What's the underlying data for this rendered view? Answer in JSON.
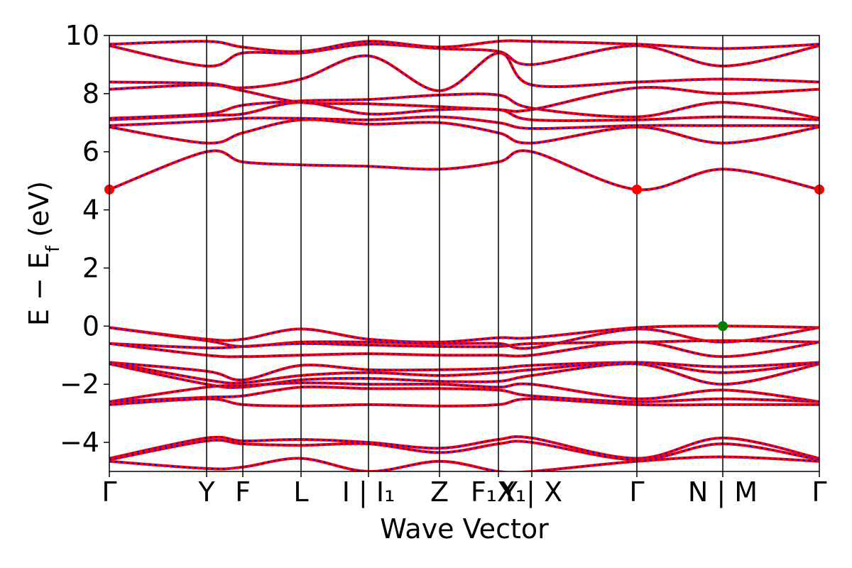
{
  "chart_data": {
    "type": "line",
    "xlabel": "Wave Vector",
    "ylabel": "E − E",
    "ylabel_sub": "f",
    "ylabel_unit": " (eV)",
    "ylim": [
      -5,
      10
    ],
    "yticks": [
      -4,
      -2,
      0,
      2,
      4,
      6,
      8,
      10
    ],
    "ytick_labels": [
      "−4",
      "−2",
      "0",
      "2",
      "4",
      "6",
      "8",
      "10"
    ],
    "grid": false,
    "legend": "none",
    "xlim": [
      0,
      1
    ],
    "kpoint_positions": [
      0,
      0.137,
      0.188,
      0.27,
      0.365,
      0.465,
      0.548,
      0.595,
      0.743,
      0.864,
      1
    ],
    "kpoint_labels": [
      {
        "pos": 0,
        "label": "Γ"
      },
      {
        "pos": 0.137,
        "label": "Y"
      },
      {
        "pos": 0.188,
        "label": "F"
      },
      {
        "pos": 0.27,
        "label": "L"
      },
      {
        "pos": 0.365,
        "label": "I | I₁"
      },
      {
        "pos": 0.465,
        "label": "Z"
      },
      {
        "pos": 0.548,
        "label": "F₁X₁"
      },
      {
        "pos": 0.595,
        "label": "Y | X"
      },
      {
        "pos": 0.743,
        "label": "Γ"
      },
      {
        "pos": 0.864,
        "label": "N | M"
      },
      {
        "pos": 1,
        "label": "Γ"
      }
    ],
    "series_styles": {
      "spin_up": "#ff0000",
      "spin_down": "#0000ff"
    },
    "cbm_marker": {
      "color": "#ff0000",
      "points": [
        [
          0,
          4.7
        ],
        [
          0.743,
          4.7
        ],
        [
          1,
          4.7
        ]
      ]
    },
    "vbm_marker": {
      "color": "#008000",
      "points": [
        [
          0.864,
          0.0
        ]
      ]
    },
    "bands": [
      [
        [
          0,
          -0.05
        ],
        [
          0.137,
          -0.45
        ],
        [
          0.188,
          -0.45
        ],
        [
          0.27,
          -0.1
        ],
        [
          0.365,
          -0.45
        ],
        [
          0.465,
          -0.55
        ],
        [
          0.548,
          -0.4
        ],
        [
          0.595,
          -0.4
        ],
        [
          0.743,
          -0.05
        ],
        [
          0.864,
          0.0
        ],
        [
          1,
          -0.05
        ]
      ],
      [
        [
          0,
          -0.05
        ],
        [
          0.137,
          -0.5
        ],
        [
          0.188,
          -0.7
        ],
        [
          0.27,
          -0.55
        ],
        [
          0.365,
          -0.55
        ],
        [
          0.465,
          -0.6
        ],
        [
          0.548,
          -0.6
        ],
        [
          0.595,
          -0.75
        ],
        [
          0.743,
          -0.1
        ],
        [
          0.864,
          -0.55
        ],
        [
          1,
          -0.05
        ]
      ],
      [
        [
          0,
          -0.6
        ],
        [
          0.137,
          -0.75
        ],
        [
          0.188,
          -0.7
        ],
        [
          0.27,
          -0.6
        ],
        [
          0.365,
          -0.65
        ],
        [
          0.465,
          -0.7
        ],
        [
          0.548,
          -0.7
        ],
        [
          0.595,
          -0.6
        ],
        [
          0.743,
          -0.55
        ],
        [
          0.864,
          -0.5
        ],
        [
          1,
          -0.55
        ]
      ],
      [
        [
          0,
          -0.6
        ],
        [
          0.137,
          -1.0
        ],
        [
          0.188,
          -1.05
        ],
        [
          0.27,
          -1.0
        ],
        [
          0.365,
          -0.95
        ],
        [
          0.465,
          -1.0
        ],
        [
          0.548,
          -1.0
        ],
        [
          0.595,
          -1.0
        ],
        [
          0.743,
          -0.55
        ],
        [
          0.864,
          -1.05
        ],
        [
          1,
          -0.55
        ]
      ],
      [
        [
          0,
          -1.25
        ],
        [
          0.137,
          -1.55
        ],
        [
          0.188,
          -1.85
        ],
        [
          0.27,
          -1.35
        ],
        [
          0.365,
          -1.5
        ],
        [
          0.465,
          -1.5
        ],
        [
          0.548,
          -1.45
        ],
        [
          0.595,
          -1.35
        ],
        [
          0.743,
          -1.25
        ],
        [
          0.864,
          -1.4
        ],
        [
          1,
          -1.25
        ]
      ],
      [
        [
          0,
          -1.25
        ],
        [
          0.137,
          -1.85
        ],
        [
          0.188,
          -1.95
        ],
        [
          0.27,
          -1.7
        ],
        [
          0.365,
          -1.6
        ],
        [
          0.465,
          -1.7
        ],
        [
          0.548,
          -1.6
        ],
        [
          0.595,
          -1.5
        ],
        [
          0.743,
          -1.25
        ],
        [
          0.864,
          -1.6
        ],
        [
          1,
          -1.25
        ]
      ],
      [
        [
          0,
          -1.3
        ],
        [
          0.137,
          -2.0
        ],
        [
          0.188,
          -2.1
        ],
        [
          0.27,
          -1.85
        ],
        [
          0.365,
          -1.8
        ],
        [
          0.465,
          -1.9
        ],
        [
          0.548,
          -1.9
        ],
        [
          0.595,
          -1.7
        ],
        [
          0.743,
          -1.3
        ],
        [
          0.864,
          -2.0
        ],
        [
          1,
          -1.3
        ]
      ],
      [
        [
          0,
          -2.6
        ],
        [
          0.137,
          -2.1
        ],
        [
          0.188,
          -2.05
        ],
        [
          0.27,
          -1.95
        ],
        [
          0.365,
          -2.0
        ],
        [
          0.465,
          -2.0
        ],
        [
          0.548,
          -2.1
        ],
        [
          0.595,
          -2.0
        ],
        [
          0.743,
          -2.5
        ],
        [
          0.864,
          -2.2
        ],
        [
          1,
          -2.6
        ]
      ],
      [
        [
          0,
          -2.6
        ],
        [
          0.137,
          -2.45
        ],
        [
          0.188,
          -2.4
        ],
        [
          0.27,
          -2.1
        ],
        [
          0.365,
          -2.15
        ],
        [
          0.465,
          -2.15
        ],
        [
          0.548,
          -2.2
        ],
        [
          0.595,
          -2.4
        ],
        [
          0.743,
          -2.6
        ],
        [
          0.864,
          -2.5
        ],
        [
          1,
          -2.6
        ]
      ],
      [
        [
          0,
          -2.7
        ],
        [
          0.137,
          -2.5
        ],
        [
          0.188,
          -2.7
        ],
        [
          0.27,
          -2.75
        ],
        [
          0.365,
          -2.7
        ],
        [
          0.465,
          -2.75
        ],
        [
          0.548,
          -2.7
        ],
        [
          0.595,
          -2.5
        ],
        [
          0.743,
          -2.7
        ],
        [
          0.864,
          -2.7
        ],
        [
          1,
          -2.7
        ]
      ],
      [
        [
          0,
          -4.55
        ],
        [
          0.137,
          -3.85
        ],
        [
          0.188,
          -3.95
        ],
        [
          0.27,
          -3.9
        ],
        [
          0.365,
          -4.0
        ],
        [
          0.465,
          -4.2
        ],
        [
          0.548,
          -3.9
        ],
        [
          0.595,
          -3.85
        ],
        [
          0.743,
          -4.55
        ],
        [
          0.864,
          -3.85
        ],
        [
          1,
          -4.55
        ]
      ],
      [
        [
          0,
          -4.6
        ],
        [
          0.137,
          -3.95
        ],
        [
          0.188,
          -4.05
        ],
        [
          0.27,
          -4.1
        ],
        [
          0.365,
          -4.05
        ],
        [
          0.465,
          -4.35
        ],
        [
          0.548,
          -4.05
        ],
        [
          0.595,
          -4.0
        ],
        [
          0.743,
          -4.6
        ],
        [
          0.864,
          -4.05
        ],
        [
          1,
          -4.6
        ]
      ],
      [
        [
          0,
          -4.65
        ],
        [
          0.137,
          -4.9
        ],
        [
          0.188,
          -4.85
        ],
        [
          0.27,
          -4.55
        ],
        [
          0.365,
          -5.0
        ],
        [
          0.465,
          -4.65
        ],
        [
          0.548,
          -5.0
        ],
        [
          0.595,
          -5.0
        ],
        [
          0.743,
          -4.65
        ],
        [
          0.864,
          -4.5
        ],
        [
          1,
          -4.65
        ]
      ],
      [
        [
          0,
          4.7
        ],
        [
          0.137,
          6.0
        ],
        [
          0.188,
          5.65
        ],
        [
          0.27,
          5.55
        ],
        [
          0.365,
          5.5
        ],
        [
          0.465,
          5.4
        ],
        [
          0.548,
          5.65
        ],
        [
          0.595,
          6.0
        ],
        [
          0.743,
          4.7
        ],
        [
          0.864,
          5.4
        ],
        [
          1,
          4.7
        ]
      ],
      [
        [
          0,
          6.85
        ],
        [
          0.137,
          6.3
        ],
        [
          0.188,
          6.65
        ],
        [
          0.27,
          7.1
        ],
        [
          0.365,
          6.95
        ],
        [
          0.465,
          7.0
        ],
        [
          0.548,
          6.65
        ],
        [
          0.595,
          6.3
        ],
        [
          0.743,
          6.85
        ],
        [
          0.864,
          6.3
        ],
        [
          1,
          6.85
        ]
      ],
      [
        [
          0,
          6.9
        ],
        [
          0.137,
          7.05
        ],
        [
          0.188,
          7.15
        ],
        [
          0.27,
          7.15
        ],
        [
          0.365,
          7.1
        ],
        [
          0.465,
          7.2
        ],
        [
          0.548,
          7.0
        ],
        [
          0.595,
          6.8
        ],
        [
          0.743,
          6.9
        ],
        [
          0.864,
          6.9
        ],
        [
          1,
          6.9
        ]
      ],
      [
        [
          0,
          7.1
        ],
        [
          0.137,
          7.25
        ],
        [
          0.188,
          7.3
        ],
        [
          0.27,
          7.7
        ],
        [
          0.365,
          7.3
        ],
        [
          0.465,
          7.45
        ],
        [
          0.548,
          7.45
        ],
        [
          0.595,
          7.1
        ],
        [
          0.743,
          7.1
        ],
        [
          0.864,
          7.2
        ],
        [
          1,
          7.1
        ]
      ],
      [
        [
          0,
          7.15
        ],
        [
          0.137,
          7.3
        ],
        [
          0.188,
          7.6
        ],
        [
          0.27,
          7.75
        ],
        [
          0.365,
          7.8
        ],
        [
          0.465,
          7.95
        ],
        [
          0.548,
          7.95
        ],
        [
          0.595,
          7.5
        ],
        [
          0.743,
          7.2
        ],
        [
          0.864,
          7.7
        ],
        [
          1,
          7.15
        ]
      ],
      [
        [
          0,
          8.15
        ],
        [
          0.137,
          8.3
        ],
        [
          0.188,
          8.1
        ],
        [
          0.27,
          7.7
        ],
        [
          0.365,
          7.65
        ],
        [
          0.465,
          7.55
        ],
        [
          0.548,
          7.45
        ],
        [
          0.595,
          7.45
        ],
        [
          0.743,
          8.2
        ],
        [
          0.864,
          8.0
        ],
        [
          1,
          8.15
        ]
      ],
      [
        [
          0,
          8.4
        ],
        [
          0.137,
          8.35
        ],
        [
          0.188,
          8.2
        ],
        [
          0.27,
          8.5
        ],
        [
          0.365,
          9.3
        ],
        [
          0.465,
          8.1
        ],
        [
          0.548,
          9.4
        ],
        [
          0.595,
          8.3
        ],
        [
          0.743,
          8.4
        ],
        [
          0.864,
          8.5
        ],
        [
          1,
          8.4
        ]
      ],
      [
        [
          0,
          9.65
        ],
        [
          0.137,
          8.95
        ],
        [
          0.188,
          9.4
        ],
        [
          0.27,
          9.4
        ],
        [
          0.365,
          9.7
        ],
        [
          0.465,
          9.55
        ],
        [
          0.548,
          9.45
        ],
        [
          0.595,
          9.0
        ],
        [
          0.743,
          9.65
        ],
        [
          0.864,
          8.95
        ],
        [
          1,
          9.65
        ]
      ],
      [
        [
          0,
          9.7
        ],
        [
          0.137,
          9.8
        ],
        [
          0.188,
          9.6
        ],
        [
          0.27,
          9.45
        ],
        [
          0.365,
          9.8
        ],
        [
          0.465,
          9.6
        ],
        [
          0.548,
          9.8
        ],
        [
          0.595,
          9.8
        ],
        [
          0.743,
          9.7
        ],
        [
          0.864,
          9.55
        ],
        [
          1,
          9.7
        ]
      ]
    ]
  }
}
